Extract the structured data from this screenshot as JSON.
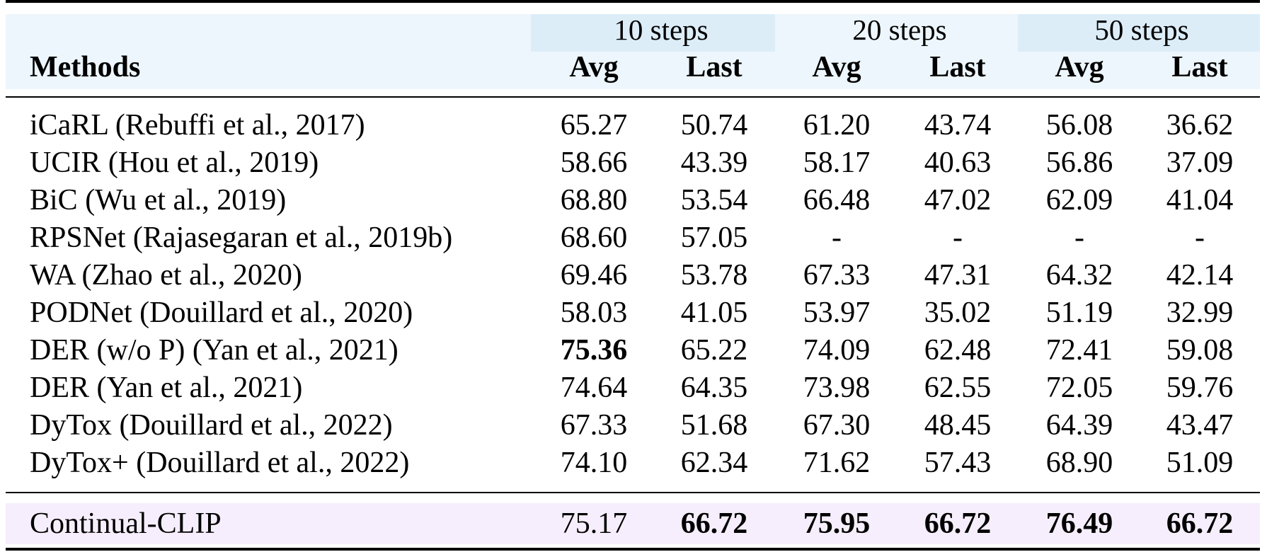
{
  "table": {
    "header": {
      "methods_label": "Methods",
      "groups": [
        "10 steps",
        "20 steps",
        "50 steps"
      ],
      "subcolumns": [
        "Avg",
        "Last",
        "Avg",
        "Last",
        "Avg",
        "Last"
      ]
    },
    "rows": [
      {
        "method": "iCaRL (Rebuffi et al., 2017)",
        "values": [
          "65.27",
          "50.74",
          "61.20",
          "43.74",
          "56.08",
          "36.62"
        ]
      },
      {
        "method": "UCIR (Hou et al., 2019)",
        "values": [
          "58.66",
          "43.39",
          "58.17",
          "40.63",
          "56.86",
          "37.09"
        ]
      },
      {
        "method": "BiC (Wu et al., 2019)",
        "values": [
          "68.80",
          "53.54",
          "66.48",
          "47.02",
          "62.09",
          "41.04"
        ]
      },
      {
        "method": "RPSNet (Rajasegaran et al., 2019b)",
        "values": [
          "68.60",
          "57.05",
          "-",
          "-",
          "-",
          "-"
        ]
      },
      {
        "method": "WA (Zhao et al., 2020)",
        "values": [
          "69.46",
          "53.78",
          "67.33",
          "47.31",
          "64.32",
          "42.14"
        ]
      },
      {
        "method": "PODNet (Douillard et al., 2020)",
        "values": [
          "58.03",
          "41.05",
          "53.97",
          "35.02",
          "51.19",
          "32.99"
        ]
      },
      {
        "method": "DER (w/o P) (Yan et al., 2021)",
        "values": [
          "75.36",
          "65.22",
          "74.09",
          "62.48",
          "72.41",
          "59.08"
        ]
      },
      {
        "method": "DER (Yan et al., 2021)",
        "values": [
          "74.64",
          "64.35",
          "73.98",
          "62.55",
          "72.05",
          "59.76"
        ]
      },
      {
        "method": "DyTox (Douillard et al., 2022)",
        "values": [
          "67.33",
          "51.68",
          "67.30",
          "48.45",
          "64.39",
          "43.47"
        ]
      },
      {
        "method": "DyTox+ (Douillard et al., 2022)",
        "values": [
          "74.10",
          "62.34",
          "71.62",
          "57.43",
          "68.90",
          "51.09"
        ]
      }
    ],
    "final_row": {
      "method": "Continual-CLIP",
      "values": [
        "75.17",
        "66.72",
        "75.95",
        "66.72",
        "76.49",
        "66.72"
      ]
    },
    "colors": {
      "header_background": "#edf6fc",
      "step_label_background": "#dcedf8",
      "highlight_row_background": "#f6eefc"
    }
  }
}
